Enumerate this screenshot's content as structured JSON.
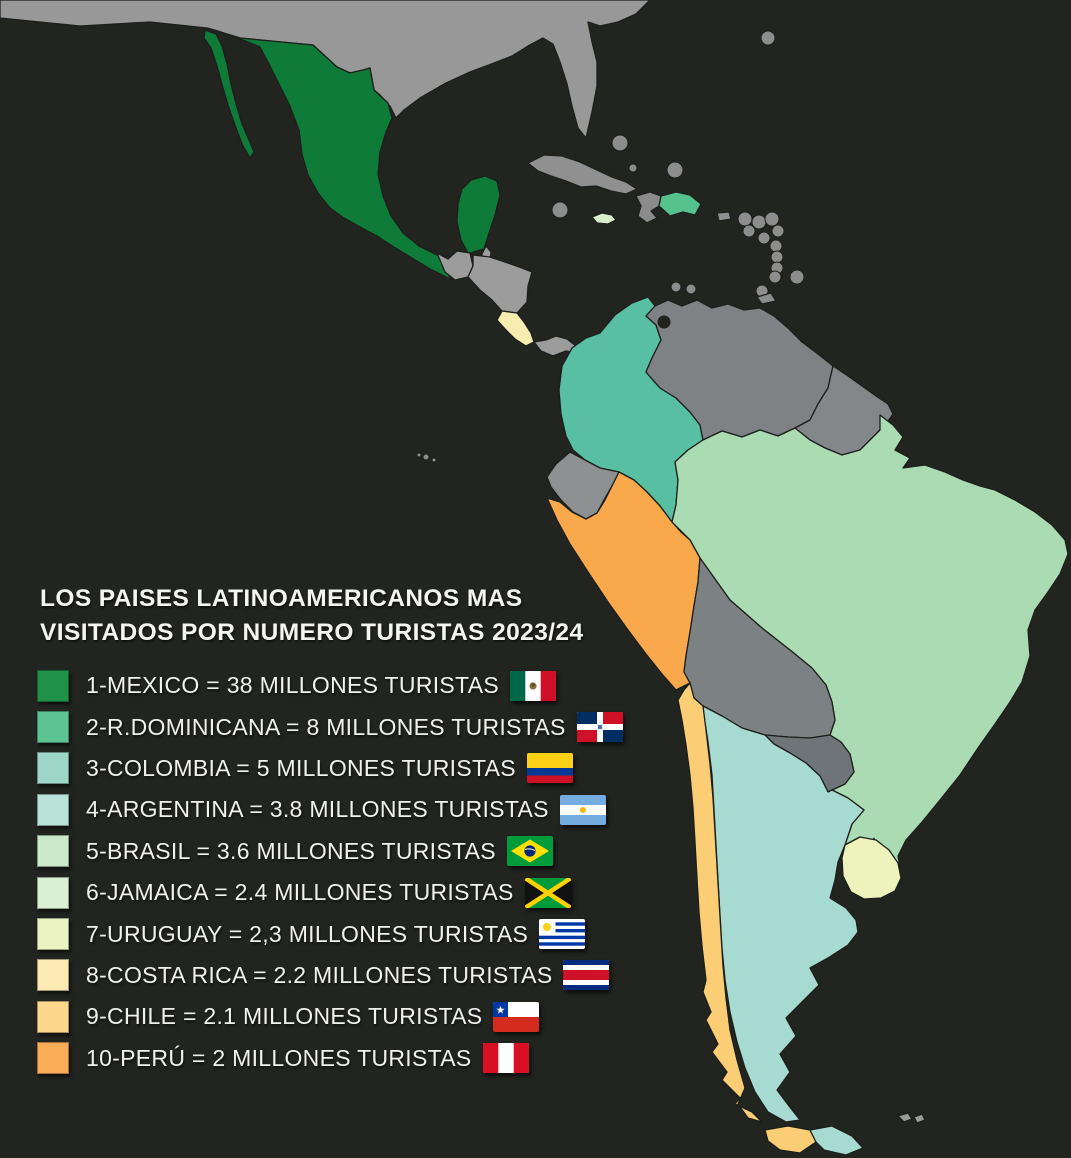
{
  "title": {
    "line1": "LOS PAISES LATINOAMERICANOS MAS",
    "line2": "VISITADOS POR NUMERO TURISTAS 2023/24"
  },
  "legend": [
    {
      "key": "mexico",
      "label": "1-MEXICO = 38 MILLONES TURISTAS",
      "swatch_color": "#1f9149",
      "flag": "mexico"
    },
    {
      "key": "dominicana",
      "label": "2-R.DOMINICANA = 8 MILLONES TURISTAS",
      "swatch_color": "#5ec392",
      "flag": "dominicana"
    },
    {
      "key": "colombia",
      "label": "3-COLOMBIA = 5 MILLONES TURISTAS",
      "swatch_color": "#9ed6c7",
      "flag": "colombia"
    },
    {
      "key": "argentina",
      "label": "4-ARGENTINA = 3.8 MILLONES TURISTAS",
      "swatch_color": "#b9e2d9",
      "flag": "argentina"
    },
    {
      "key": "brasil",
      "label": "5-BRASIL = 3.6 MILLONES TURISTAS",
      "swatch_color": "#c9e9c9",
      "flag": "brasil"
    },
    {
      "key": "jamaica",
      "label": "6-JAMAICA = 2.4 MILLONES TURISTAS",
      "swatch_color": "#dbefd2",
      "flag": "jamaica"
    },
    {
      "key": "uruguay",
      "label": "7-URUGUAY = 2,3 MILLONES TURISTAS",
      "swatch_color": "#ecf3c3",
      "flag": "uruguay"
    },
    {
      "key": "costarica",
      "label": "8-COSTA RICA = 2.2 MILLONES TURISTAS",
      "swatch_color": "#fbeab2",
      "flag": "costarica"
    },
    {
      "key": "chile",
      "label": "9-CHILE = 2.1 MILLONES TURISTAS",
      "swatch_color": "#fcd88c",
      "flag": "chile"
    },
    {
      "key": "peru",
      "label": "10-PERÚ = 2 MILLONES TURISTAS",
      "swatch_color": "#f9ad56",
      "flag": "peru"
    }
  ],
  "map": {
    "background": "#222420",
    "colors": {
      "usa": "#989898",
      "mexico": "#0e7c38",
      "baja_california": "#0e7c38",
      "belize": "#9c9c9c",
      "guatemala": "#9c9c9c",
      "honduras_nicaragua": "#9c9c9c",
      "costa_rica": "#f8edb0",
      "panama": "#9c9c9c",
      "cuba": "#909090",
      "haiti": "#8b8b8b",
      "dominican_republic": "#55c28e",
      "jamaica": "#d9efca",
      "puerto_rico": "#909090",
      "islands": "#8d8d8d",
      "colombia": "#58bfa2",
      "venezuela": "#7e8284",
      "guianas": "#838789",
      "ecuador": "#8d9192",
      "galapagos": "#8a8a8a",
      "peru": "#f9a84c",
      "brazil": "#aadbb2",
      "bolivia": "#7c8183",
      "paraguay": "#6e7478",
      "chile": "#fbce76",
      "argentina": "#a7dbd1",
      "uruguay": "#eef3bc",
      "falklands": "#9a9a9a"
    }
  }
}
